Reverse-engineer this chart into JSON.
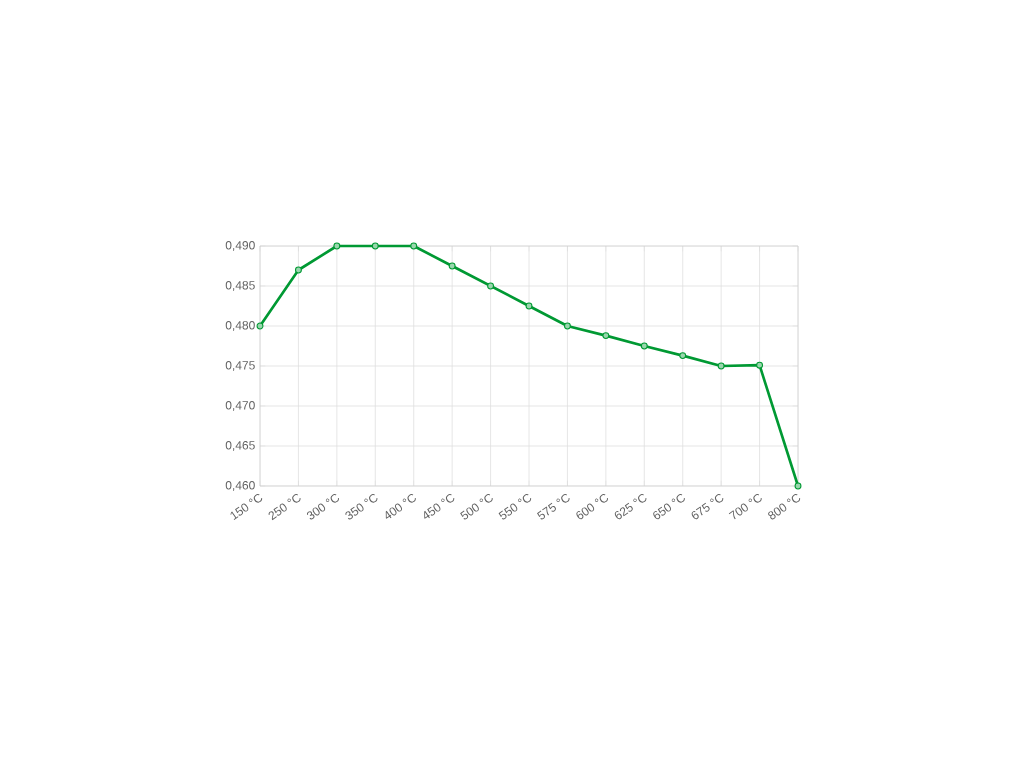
{
  "chart_data": {
    "type": "line",
    "categories": [
      "150 °C",
      "250 °C",
      "300 °C",
      "350 °C",
      "400 °C",
      "450 °C",
      "500 °C",
      "550 °C",
      "575 °C",
      "600 °C",
      "625 °C",
      "650 °C",
      "675 °C",
      "700 °C",
      "800 °C"
    ],
    "series": [
      {
        "color": "#009933",
        "values": [
          0.48,
          0.487,
          0.49,
          0.49,
          0.49,
          0.4875,
          0.485,
          0.4825,
          0.48,
          0.4788,
          0.4775,
          0.4763,
          0.475,
          0.4751,
          0.46
        ]
      }
    ],
    "ylim": [
      0.46,
      0.49
    ],
    "yticks": [
      {
        "value": 0.46,
        "label": "0,460"
      },
      {
        "value": 0.465,
        "label": "0,465"
      },
      {
        "value": 0.47,
        "label": "0,470"
      },
      {
        "value": 0.475,
        "label": "0,475"
      },
      {
        "value": 0.48,
        "label": "0,480"
      },
      {
        "value": 0.485,
        "label": "0,485"
      },
      {
        "value": 0.49,
        "label": "0,490"
      }
    ],
    "grid": true,
    "marker": "circle",
    "line_style": "solid"
  }
}
